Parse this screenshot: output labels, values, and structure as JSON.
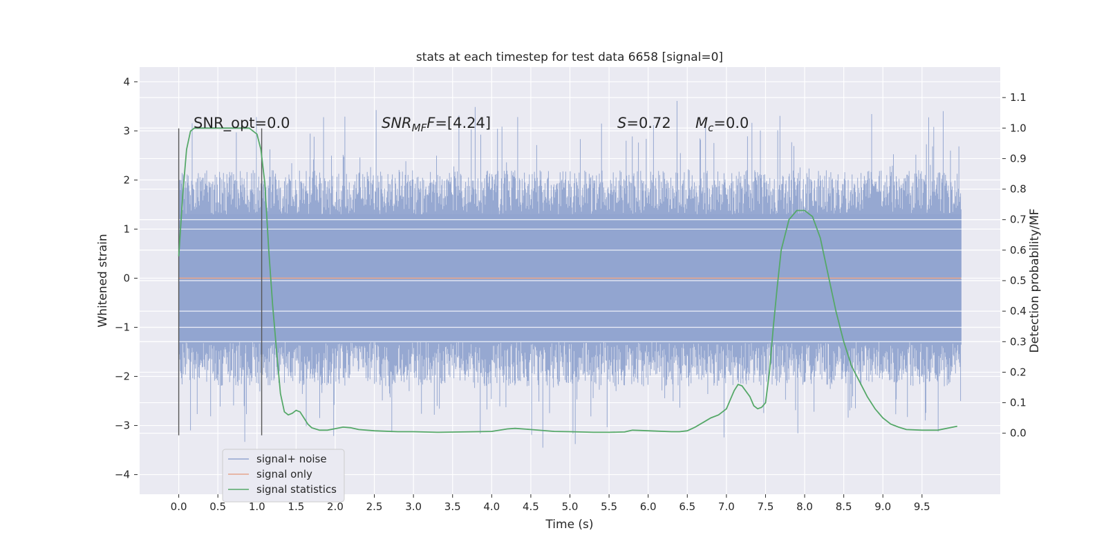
{
  "chart_data": {
    "type": "line",
    "title": "stats at each timestep for test data 6658 [signal=0]",
    "xlabel": "Time (s)",
    "ylabel_left": "Whitened strain",
    "ylabel_right": "Detection probability/MF",
    "xlim": [
      -0.5,
      10.5
    ],
    "ylim_left": [
      -4.4,
      4.3
    ],
    "ylim_right": [
      -0.2,
      1.2
    ],
    "x_ticks": [
      0.0,
      0.5,
      1.0,
      1.5,
      2.0,
      2.5,
      3.0,
      3.5,
      4.0,
      4.5,
      5.0,
      5.5,
      6.0,
      6.5,
      7.0,
      7.5,
      8.0,
      8.5,
      9.0,
      9.5
    ],
    "x_tick_labels": [
      "0.0",
      "0.5",
      "1.0",
      "1.5",
      "2.0",
      "2.5",
      "3.0",
      "3.5",
      "4.0",
      "4.5",
      "5.0",
      "5.5",
      "6.0",
      "6.5",
      "7.0",
      "7.5",
      "8.0",
      "8.5",
      "9.0",
      "9.5"
    ],
    "y_left_ticks": [
      4,
      3,
      2,
      1,
      0,
      -1,
      -2,
      -3,
      -4
    ],
    "y_left_tick_labels": [
      "4",
      "3",
      "2",
      "1",
      "0",
      "−1",
      "−2",
      "−3",
      "−4"
    ],
    "y_right_ticks": [
      1.1,
      1.0,
      0.9,
      0.8,
      0.7,
      0.6,
      0.5,
      0.4,
      0.3,
      0.2,
      0.1,
      0.0
    ],
    "y_right_tick_labels": [
      "1.1",
      "1.0",
      "0.9",
      "0.8",
      "0.7",
      "0.6",
      "0.5",
      "0.4",
      "0.3",
      "0.2",
      "0.1",
      "0.0"
    ],
    "grid": true,
    "legend_placement": "lower-left",
    "annotations": {
      "snr_opt": "SNR_opt=0.0",
      "snr_mf_prefix": "SNR",
      "snr_mf_sub": "MF",
      "snr_mf_suffix": "=[4.24]",
      "s_prefix": "S",
      "s_suffix": "=0.72",
      "mc_prefix": "M",
      "mc_sub": "c",
      "mc_suffix": "=0.0"
    },
    "vertical_markers_x": [
      0.0,
      1.06
    ],
    "vertical_markers_range": [
      -3.2,
      3.05
    ],
    "series": [
      {
        "name": "signal+ noise",
        "color": "#91a4cf",
        "kind": "noise",
        "x_range": [
          0.0,
          10.0
        ],
        "core_amplitude": 1.3,
        "peak_amplitude": 3.9
      },
      {
        "name": "signal only",
        "color": "#e6a58c",
        "kind": "constant",
        "x_range": [
          0.0,
          10.0
        ],
        "y": 0.0
      },
      {
        "name": "signal statistics",
        "color": "#55a868",
        "kind": "line",
        "axis": "right",
        "x": [
          0.0,
          0.05,
          0.1,
          0.15,
          0.2,
          0.3,
          0.5,
          0.7,
          0.8,
          0.9,
          1.0,
          1.05,
          1.1,
          1.15,
          1.2,
          1.25,
          1.3,
          1.35,
          1.4,
          1.45,
          1.5,
          1.55,
          1.6,
          1.65,
          1.7,
          1.8,
          1.9,
          2.0,
          2.1,
          2.2,
          2.3,
          2.5,
          2.8,
          3.0,
          3.3,
          3.6,
          4.0,
          4.2,
          4.3,
          4.5,
          4.8,
          5.0,
          5.3,
          5.5,
          5.7,
          5.8,
          6.0,
          6.3,
          6.4,
          6.5,
          6.6,
          6.7,
          6.8,
          6.9,
          7.0,
          7.05,
          7.1,
          7.15,
          7.2,
          7.3,
          7.35,
          7.4,
          7.45,
          7.5,
          7.55,
          7.6,
          7.65,
          7.7,
          7.8,
          7.9,
          7.95,
          8.0,
          8.1,
          8.2,
          8.3,
          8.4,
          8.5,
          8.6,
          8.7,
          8.8,
          8.9,
          9.0,
          9.1,
          9.2,
          9.3,
          9.5,
          9.7,
          9.95
        ],
        "y": [
          0.58,
          0.78,
          0.93,
          0.99,
          1.0,
          1.0,
          1.0,
          1.0,
          1.0,
          1.0,
          0.98,
          0.93,
          0.82,
          0.6,
          0.42,
          0.27,
          0.13,
          0.07,
          0.06,
          0.065,
          0.075,
          0.07,
          0.05,
          0.03,
          0.018,
          0.01,
          0.01,
          0.015,
          0.02,
          0.018,
          0.012,
          0.008,
          0.005,
          0.005,
          0.003,
          0.004,
          0.006,
          0.014,
          0.016,
          0.012,
          0.006,
          0.005,
          0.003,
          0.003,
          0.004,
          0.01,
          0.008,
          0.005,
          0.005,
          0.008,
          0.02,
          0.035,
          0.05,
          0.06,
          0.08,
          0.11,
          0.14,
          0.16,
          0.155,
          0.12,
          0.09,
          0.08,
          0.085,
          0.1,
          0.2,
          0.35,
          0.48,
          0.6,
          0.7,
          0.73,
          0.73,
          0.73,
          0.71,
          0.64,
          0.52,
          0.4,
          0.3,
          0.22,
          0.17,
          0.12,
          0.08,
          0.05,
          0.03,
          0.02,
          0.012,
          0.01,
          0.01,
          0.023
        ]
      }
    ]
  }
}
